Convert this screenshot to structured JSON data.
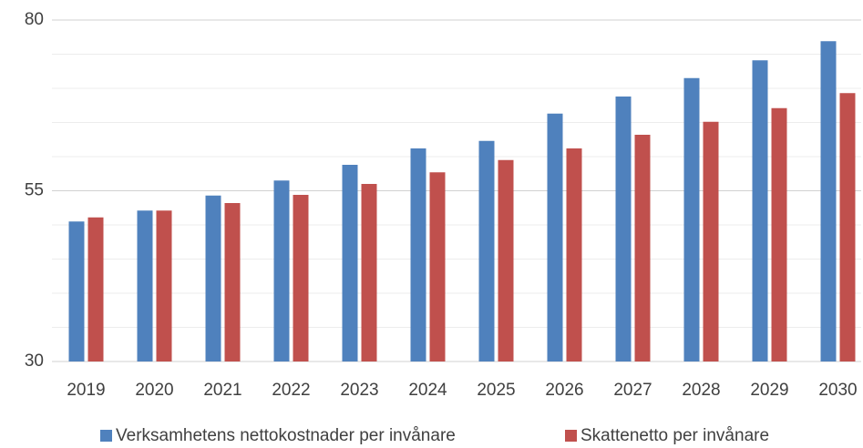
{
  "chart_data": {
    "type": "bar",
    "categories": [
      "2019",
      "2020",
      "2021",
      "2022",
      "2023",
      "2024",
      "2025",
      "2026",
      "2027",
      "2028",
      "2029",
      "2030"
    ],
    "series": [
      {
        "name": "Verksamhetens nettokostnader per invånare",
        "color": "#4f81bd",
        "values": [
          50.5,
          52.1,
          54.3,
          56.5,
          58.8,
          61.2,
          62.3,
          66.3,
          68.8,
          71.5,
          74.1,
          76.9
        ]
      },
      {
        "name": "Skattenetto per invånare",
        "color": "#c0504d",
        "values": [
          51.1,
          52.1,
          53.2,
          54.4,
          56.0,
          57.7,
          59.5,
          61.2,
          63.2,
          65.1,
          67.1,
          69.3
        ]
      }
    ],
    "ylim": [
      30,
      80
    ],
    "yticks": [
      30,
      55,
      80
    ],
    "minor_yticks": [
      35,
      40,
      45,
      50,
      60,
      65,
      70,
      75
    ],
    "grid": true,
    "legend": "bottom"
  }
}
